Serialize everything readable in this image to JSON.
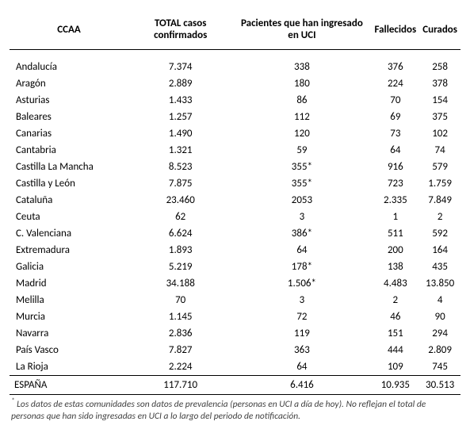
{
  "table": {
    "columns": [
      "CCAA",
      "TOTAL casos confirmados",
      "Pacientes que han ingresado en UCI",
      "Fallecidos",
      "Curados"
    ],
    "rows": [
      [
        "Andalucía",
        "7.374",
        "338",
        "376",
        "258"
      ],
      [
        "Aragón",
        "2.889",
        "180",
        "224",
        "378"
      ],
      [
        "Asturias",
        "1.433",
        "86",
        "70",
        "154"
      ],
      [
        "Baleares",
        "1.257",
        "112",
        "69",
        "375"
      ],
      [
        "Canarias",
        "1.490",
        "120",
        "73",
        "102"
      ],
      [
        "Cantabria",
        "1.321",
        "59",
        "64",
        "74"
      ],
      [
        "Castilla La Mancha",
        "8.523",
        "355*",
        "916",
        "579"
      ],
      [
        "Castilla y León",
        "7.875",
        "355*",
        "723",
        "1.759"
      ],
      [
        "Cataluña",
        "23.460",
        "2053",
        "2.335",
        "7.849"
      ],
      [
        "Ceuta",
        "62",
        "3",
        "1",
        "2"
      ],
      [
        "C. Valenciana",
        "6.624",
        "386*",
        "511",
        "592"
      ],
      [
        "Extremadura",
        "1.893",
        "64",
        "200",
        "164"
      ],
      [
        "Galicia",
        "5.219",
        "178*",
        "138",
        "435"
      ],
      [
        "Madrid",
        "34.188",
        "1.506*",
        "4.483",
        "13.850"
      ],
      [
        "Melilla",
        "70",
        "3",
        "2",
        "4"
      ],
      [
        "Murcia",
        "1.145",
        "72",
        "46",
        "90"
      ],
      [
        "Navarra",
        "2.836",
        "119",
        "151",
        "294"
      ],
      [
        "País Vasco",
        "7.827",
        "363",
        "444",
        "2.809"
      ],
      [
        "La Rioja",
        "2.224",
        "64",
        "109",
        "745"
      ]
    ],
    "total_row": [
      "ESPAÑA",
      "117.710",
      "6.416",
      "10.935",
      "30.513"
    ]
  },
  "footnote": "Los datos de estas comunidades son datos de prevalencia (personas en UCI a día de hoy). No reflejan el total de personas que han sido ingresadas en UCI a lo largo del periodo de notificación.",
  "footnote_marker": "*"
}
